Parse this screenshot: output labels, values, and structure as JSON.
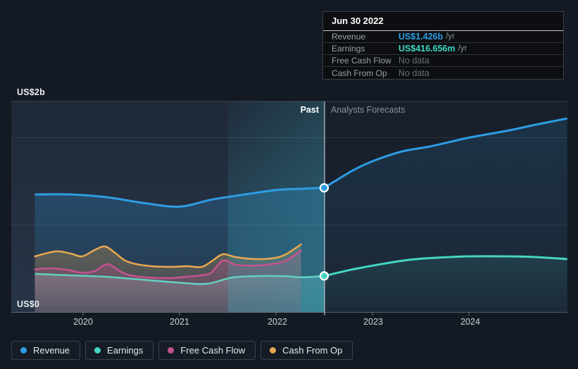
{
  "tooltip": {
    "date": "Jun 30 2022",
    "rows": [
      {
        "label": "Revenue",
        "value": "US$1.426b",
        "suffix": "/yr",
        "color": "#2e9de4"
      },
      {
        "label": "Earnings",
        "value": "US$416.656m",
        "suffix": "/yr",
        "color": "#3fd6c5"
      },
      {
        "label": "Free Cash Flow",
        "value": "No data",
        "color": "#686e76"
      },
      {
        "label": "Cash From Op",
        "value": "No data",
        "color": "#686e76"
      }
    ]
  },
  "axis": {
    "y_top_label": "US$2b",
    "y_bottom_label": "US$0",
    "x_tick_labels": [
      "2020",
      "2021",
      "2022",
      "2023",
      "2024"
    ]
  },
  "region_labels": {
    "past": "Past",
    "forecast": "Analysts Forecasts"
  },
  "legend": [
    {
      "label": "Revenue",
      "color": "#2e9de4"
    },
    {
      "label": "Earnings",
      "color": "#45d6c3"
    },
    {
      "label": "Free Cash Flow",
      "color": "#c5538f"
    },
    {
      "label": "Cash From Op",
      "color": "#e9a850"
    }
  ],
  "chart_data": {
    "type": "area",
    "title": "Revenue and earnings past and forecast",
    "x_axis": {
      "unit": "year",
      "ticks": [
        2020,
        2021,
        2022,
        2023,
        2024
      ],
      "range": [
        2019.5,
        2025.02
      ]
    },
    "y_axis": {
      "unit": "US$ billions",
      "gridline_values": [
        0,
        1,
        2
      ],
      "top_label_value": 2,
      "bottom_label_value": 0
    },
    "divider_x": 2022.5,
    "divider_date": "Jun 30 2022",
    "highlight_band": [
      2021.5,
      2022.5
    ],
    "legend_position": "bottom",
    "series": [
      {
        "name": "Revenue",
        "color": "#2e9de4",
        "past": [
          [
            2019.5,
            1.35
          ],
          [
            2019.87,
            1.35
          ],
          [
            2020.23,
            1.32
          ],
          [
            2020.64,
            1.25
          ],
          [
            2021.0,
            1.21
          ],
          [
            2021.33,
            1.29
          ],
          [
            2021.62,
            1.34
          ],
          [
            2022.0,
            1.4
          ],
          [
            2022.28,
            1.415
          ],
          [
            2022.5,
            1.426
          ]
        ],
        "forecast": [
          [
            2022.5,
            1.426
          ],
          [
            2022.79,
            1.62
          ],
          [
            2023.0,
            1.73
          ],
          [
            2023.3,
            1.84
          ],
          [
            2023.6,
            1.9
          ],
          [
            2024.0,
            2.0
          ],
          [
            2024.4,
            2.08
          ],
          [
            2024.7,
            2.15
          ],
          [
            2025.02,
            2.22
          ]
        ]
      },
      {
        "name": "Earnings",
        "color": "#45d6c3",
        "past": [
          [
            2019.5,
            0.44
          ],
          [
            2019.87,
            0.423
          ],
          [
            2020.23,
            0.407
          ],
          [
            2020.6,
            0.375
          ],
          [
            2020.96,
            0.343
          ],
          [
            2021.28,
            0.327
          ],
          [
            2021.55,
            0.399
          ],
          [
            2021.84,
            0.415
          ],
          [
            2022.1,
            0.413
          ],
          [
            2022.28,
            0.401
          ],
          [
            2022.5,
            0.4167
          ]
        ],
        "forecast": [
          [
            2022.5,
            0.4167
          ],
          [
            2022.79,
            0.49
          ],
          [
            2023.08,
            0.55
          ],
          [
            2023.37,
            0.6
          ],
          [
            2023.66,
            0.625
          ],
          [
            2024.01,
            0.641
          ],
          [
            2024.39,
            0.641
          ],
          [
            2024.69,
            0.633
          ],
          [
            2025.02,
            0.61
          ]
        ]
      },
      {
        "name": "Free Cash Flow",
        "color": "#c5538f",
        "past": [
          [
            2019.5,
            0.49
          ],
          [
            2019.65,
            0.504
          ],
          [
            2019.83,
            0.488
          ],
          [
            2019.98,
            0.456
          ],
          [
            2020.12,
            0.472
          ],
          [
            2020.25,
            0.552
          ],
          [
            2020.38,
            0.472
          ],
          [
            2020.49,
            0.423
          ],
          [
            2020.67,
            0.399
          ],
          [
            2020.89,
            0.391
          ],
          [
            2021.07,
            0.407
          ],
          [
            2021.22,
            0.423
          ],
          [
            2021.33,
            0.456
          ],
          [
            2021.45,
            0.593
          ],
          [
            2021.58,
            0.545
          ],
          [
            2021.77,
            0.535
          ],
          [
            2021.95,
            0.552
          ],
          [
            2022.09,
            0.585
          ],
          [
            2022.26,
            0.705
          ]
        ]
      },
      {
        "name": "Cash From Op",
        "color": "#e9a850",
        "past": [
          [
            2019.5,
            0.64
          ],
          [
            2019.72,
            0.698
          ],
          [
            2019.87,
            0.673
          ],
          [
            2019.99,
            0.641
          ],
          [
            2020.12,
            0.714
          ],
          [
            2020.23,
            0.754
          ],
          [
            2020.34,
            0.673
          ],
          [
            2020.45,
            0.585
          ],
          [
            2020.64,
            0.536
          ],
          [
            2020.89,
            0.52
          ],
          [
            2021.07,
            0.528
          ],
          [
            2021.23,
            0.52
          ],
          [
            2021.34,
            0.59
          ],
          [
            2021.45,
            0.665
          ],
          [
            2021.58,
            0.633
          ],
          [
            2021.77,
            0.61
          ],
          [
            2021.95,
            0.617
          ],
          [
            2022.09,
            0.657
          ],
          [
            2022.26,
            0.778
          ]
        ]
      }
    ],
    "markers": [
      {
        "series": "Revenue",
        "x": 2022.5,
        "y": 1.426,
        "label": "US$1.426b /yr"
      },
      {
        "series": "Earnings",
        "x": 2022.5,
        "y": 0.416656,
        "label": "US$416.656m /yr"
      }
    ]
  }
}
